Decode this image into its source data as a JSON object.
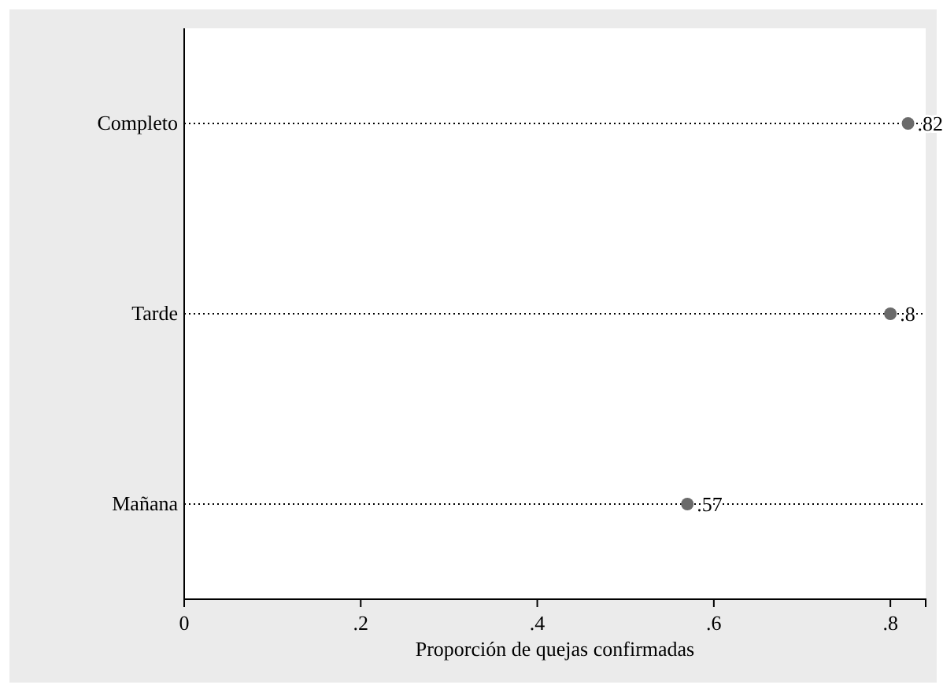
{
  "chart_data": {
    "type": "scatter",
    "orientation": "horizontal",
    "xlabel": "Proporción de quejas confirmadas",
    "categories": [
      "Completo",
      "Tarde",
      "Mañana"
    ],
    "values": [
      0.82,
      0.8,
      0.57
    ],
    "value_labels": [
      ".82",
      ".8",
      ".57"
    ],
    "color": "#6a6a6a",
    "marker": "circle",
    "xlim": [
      0,
      0.84
    ],
    "xticks": [
      0,
      {
        "value": 0.2,
        "label": ".2"
      },
      {
        "value": 0.4,
        "label": ".4"
      },
      {
        "value": 0.6,
        "label": ".6"
      },
      {
        "value": 0.8,
        "label": ".8"
      }
    ],
    "grid": "y"
  }
}
